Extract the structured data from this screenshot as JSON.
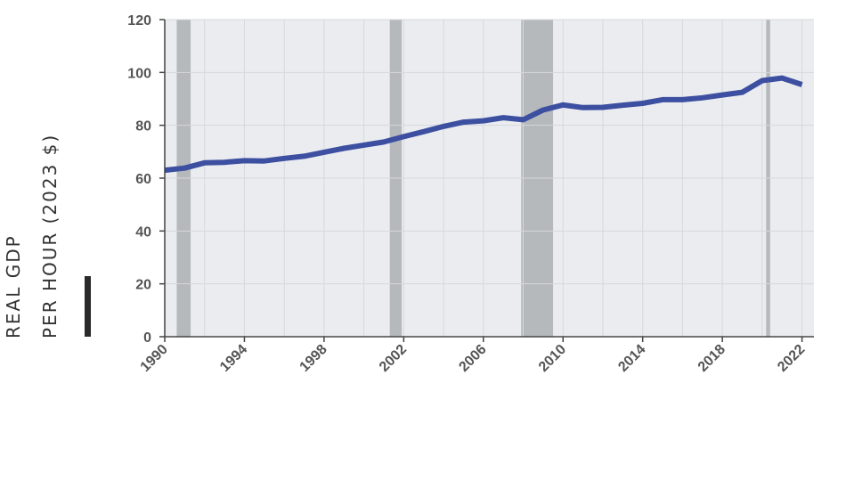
{
  "chart_data": {
    "type": "line",
    "ylabel_line1": "REAL GDP",
    "ylabel_line2": "PER HOUR (2023 $)",
    "ylim": [
      0,
      120
    ],
    "yticks": [
      0,
      20,
      40,
      60,
      80,
      100,
      120
    ],
    "xlim": [
      1990,
      2022.6
    ],
    "xticks": [
      1990,
      1994,
      1998,
      2002,
      2006,
      2010,
      2014,
      2018,
      2022
    ],
    "grid": true,
    "line_color": "#3c4fa0",
    "recession_color": "#b5b9bb",
    "recessions": [
      [
        1990.6,
        1991.3
      ],
      [
        2001.3,
        2001.9
      ],
      [
        2007.9,
        2009.5
      ],
      [
        2020.2,
        2020.4
      ]
    ],
    "series": [
      {
        "x": [
          1990,
          1991,
          1992,
          1993,
          1994,
          1995,
          1996,
          1997,
          1998,
          1999,
          2000,
          2001,
          2002,
          2003,
          2004,
          2005,
          2006,
          2007,
          2008,
          2009,
          2010,
          2011,
          2012,
          2013,
          2014,
          2015,
          2016,
          2017,
          2018,
          2019,
          2020,
          2021,
          2022
        ],
        "values": [
          63,
          63.8,
          65.8,
          66,
          66.6,
          66.5,
          67.5,
          68.3,
          69.8,
          71.3,
          72.5,
          73.7,
          75.7,
          77.6,
          79.6,
          81.2,
          81.7,
          82.9,
          82.1,
          85.8,
          87.7,
          86.7,
          86.8,
          87.6,
          88.3,
          89.7,
          89.7,
          90.4,
          91.5,
          92.5,
          96.9,
          97.9,
          95.4
        ]
      }
    ]
  }
}
